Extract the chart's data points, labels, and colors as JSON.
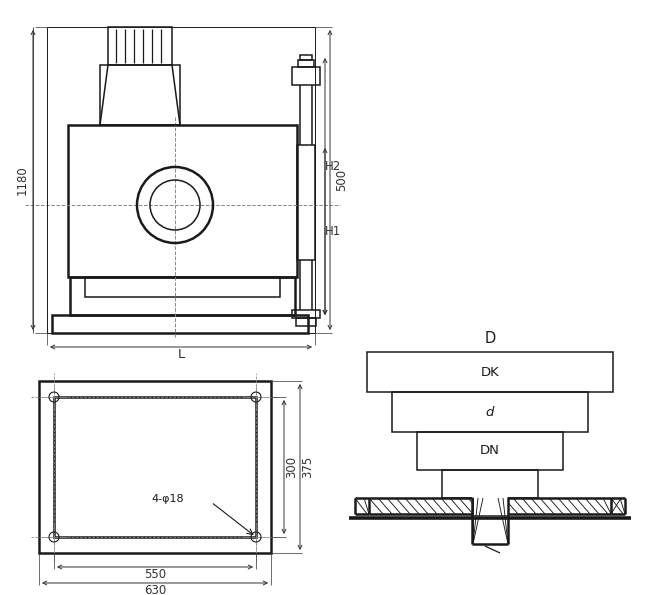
{
  "bg": "#ffffff",
  "lc": "#1a1a1a",
  "dc": "#333333",
  "dsh": "#888888",
  "fs": 8.5,
  "lw": 1.1,
  "lwt": 1.8,
  "lwb": 0.7,
  "labels": {
    "1180": "1180",
    "500": "500",
    "L": "L",
    "H1": "H1",
    "H2": "H2",
    "300": "300",
    "375": "375",
    "550": "550",
    "630": "630",
    "4phi18": "4-φ18",
    "D": "D",
    "DK": "DK",
    "d": "d",
    "DN": "DN"
  }
}
